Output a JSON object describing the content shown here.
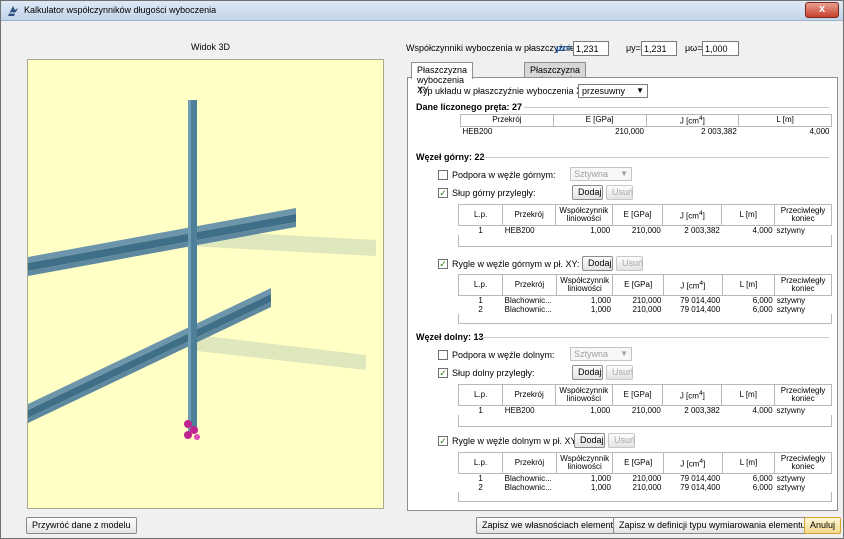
{
  "window": {
    "title": "Kalkulator współczynników długości wyboczenia",
    "close_symbol": "x"
  },
  "view3d": {
    "title": "Widok 3D"
  },
  "coefficients": {
    "label": "Współczynniki wyboczenia w płaszczyźnie:",
    "mu_z_label": "μz=",
    "mu_z": "1,231",
    "mu_y_label": "μy=",
    "mu_y": "1,231",
    "mu_w_label": "μω=",
    "mu_w": "1,000"
  },
  "tabs": [
    {
      "label": "Płaszczyzna wyboczenia XY"
    },
    {
      "label": "Płaszczyzna wyboczenia XZ"
    }
  ],
  "system_type": {
    "label": "Typ układu w płaszczyźnie wyboczenia XY:",
    "value": "przesuwny"
  },
  "member": {
    "heading": "Dane liczonego pręta: 27",
    "headers": [
      "Przekrój",
      "E [GPa]",
      "J [cm4]",
      "L [m]"
    ],
    "row": [
      "HEB200",
      "210,000",
      "2 003,382",
      "4,000"
    ]
  },
  "top_node": {
    "heading": "Węzeł górny: 22",
    "support_label": "Podpora w węźle górnym:",
    "support_value": "Sztywna",
    "column_label": "Słup górny przyległy:",
    "beam_label": "Rygle w węźle górnym w pł. XY:",
    "column_rows": [
      [
        "1",
        "HEB200",
        "1,000",
        "210,000",
        "2 003,382",
        "4,000",
        "sztywny"
      ]
    ],
    "beam_rows": [
      [
        "1",
        "Blachownic...",
        "1,000",
        "210,000",
        "79 014,400",
        "6,000",
        "sztywny"
      ],
      [
        "2",
        "Blachownic...",
        "1,000",
        "210,000",
        "79 014,400",
        "6,000",
        "sztywny"
      ]
    ]
  },
  "bottom_node": {
    "heading": "Węzeł dolny: 13",
    "support_label": "Podpora w węźle dolnym:",
    "support_value": "Sztywna",
    "column_label": "Słup dolny przyległy:",
    "beam_label": "Rygle w węźle dolnym w pł. XY:",
    "column_rows": [
      [
        "1",
        "HEB200",
        "1,000",
        "210,000",
        "2 003,382",
        "4,000",
        "sztywny"
      ]
    ],
    "beam_rows": [
      [
        "1",
        "Blachownic...",
        "1,000",
        "210,000",
        "79 014,400",
        "6,000",
        "sztywny"
      ],
      [
        "2",
        "Blachownic...",
        "1,000",
        "210,000",
        "79 014,400",
        "6,000",
        "sztywny"
      ]
    ]
  },
  "sub_headers": [
    "L.p.",
    "Przekrój",
    "Współczynnik liniowości",
    "E [GPa]",
    "J [cm4]",
    "L [m]",
    "Przeciwległy koniec"
  ],
  "buttons": {
    "add": "Dodaj",
    "remove": "Usuń",
    "restore": "Przywróć dane z modelu",
    "save_props": "Zapisz we własnościach elementu",
    "save_type": "Zapisz w definicji typu wymiarowania elementu",
    "cancel": "Anuluj"
  },
  "colors": {
    "view_bg": "#ffffc6",
    "steel": "#4e7f99",
    "check": "#2a7a10",
    "support_marker": "#c0238f"
  }
}
